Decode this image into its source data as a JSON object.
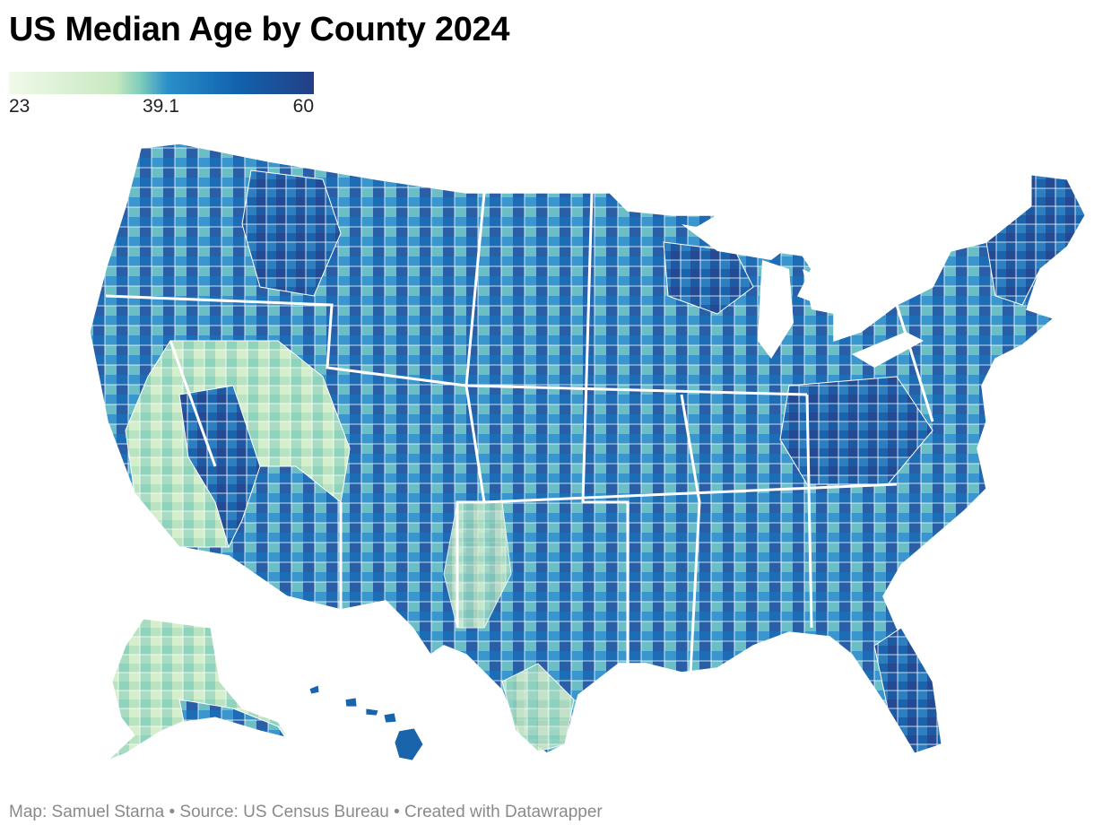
{
  "title": "US Median Age by County 2024",
  "legend": {
    "min_label": "23",
    "mid_label": "39.1",
    "max_label": "60",
    "min_value": 23,
    "mid_value": 39.1,
    "max_value": 60,
    "colors": [
      "#f1f9ea",
      "#c7e9c0",
      "#7fcdbb",
      "#2a8fc9",
      "#1262ad",
      "#233f86"
    ]
  },
  "footer": {
    "credit": "Map: Samuel Starna",
    "source": "Source: US Census Bureau",
    "tool": "Created with Datawrapper",
    "separator": " • "
  },
  "map": {
    "region": "United States (counties)",
    "border_color": "#ffffff",
    "ocean_color": "#ffffff"
  }
}
